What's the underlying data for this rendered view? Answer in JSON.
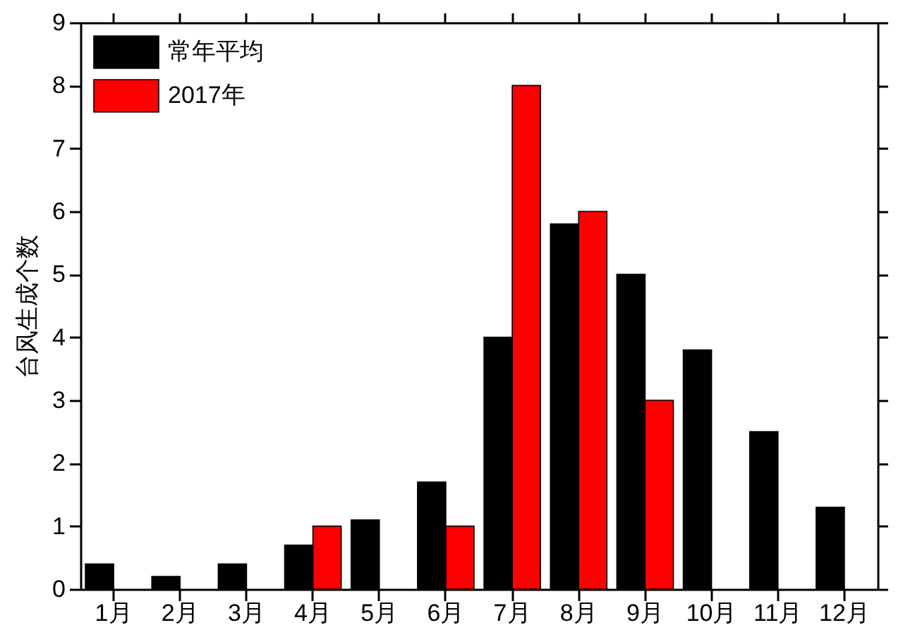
{
  "chart_data": {
    "type": "bar",
    "categories": [
      "1月",
      "2月",
      "3月",
      "4月",
      "5月",
      "6月",
      "7月",
      "8月",
      "9月",
      "10月",
      "11月",
      "12月"
    ],
    "series": [
      {
        "name": "常年平均",
        "color": "#000000",
        "values": [
          0.4,
          0.2,
          0.4,
          0.7,
          1.1,
          1.7,
          4.0,
          5.8,
          5.0,
          3.8,
          2.5,
          1.3
        ]
      },
      {
        "name": "2017年",
        "color": "#ff0000",
        "values": [
          null,
          null,
          null,
          1,
          null,
          1,
          8,
          6,
          3,
          null,
          null,
          null
        ]
      }
    ],
    "ylabel": "台风生成个数",
    "ylim": [
      0,
      9
    ],
    "yticks": [
      0,
      1,
      2,
      3,
      4,
      5,
      6,
      7,
      8,
      9
    ],
    "grid": false,
    "legend": "top left"
  }
}
